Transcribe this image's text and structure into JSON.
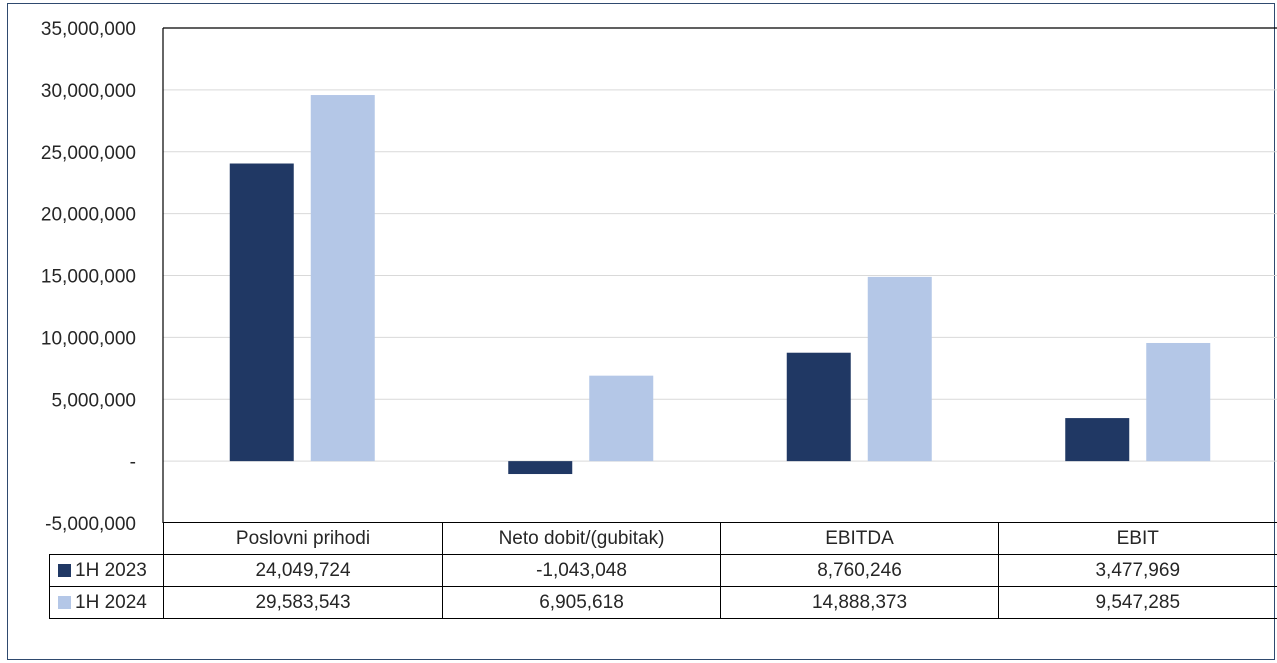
{
  "chart_data": {
    "type": "bar",
    "categories": [
      "Poslovni prihodi",
      "Neto dobit/(gubitak)",
      "EBITDA",
      "EBIT"
    ],
    "series": [
      {
        "name": "1H 2023",
        "color": "#203864",
        "values": [
          24049724,
          -1043048,
          8760246,
          3477969
        ],
        "labels": [
          "24,049,724",
          "-1,043,048",
          "8,760,246",
          "3,477,969"
        ]
      },
      {
        "name": "1H 2024",
        "color": "#b4c7e7",
        "values": [
          29583543,
          6905618,
          14888373,
          9547285
        ],
        "labels": [
          "29,583,543",
          "6,905,618",
          "14,888,373",
          "9,547,285"
        ]
      }
    ],
    "ylim": [
      -5000000,
      35000000
    ],
    "yticks": [
      -5000000,
      0,
      5000000,
      10000000,
      15000000,
      20000000,
      25000000,
      30000000,
      35000000
    ],
    "ytick_labels": [
      "-5,000,000",
      "-",
      "5,000,000",
      "10,000,000",
      "15,000,000",
      "20,000,000",
      "25,000,000",
      "30,000,000",
      "35,000,000"
    ],
    "grid": true,
    "legend": "data-table",
    "title": "",
    "xlabel": "",
    "ylabel": ""
  }
}
